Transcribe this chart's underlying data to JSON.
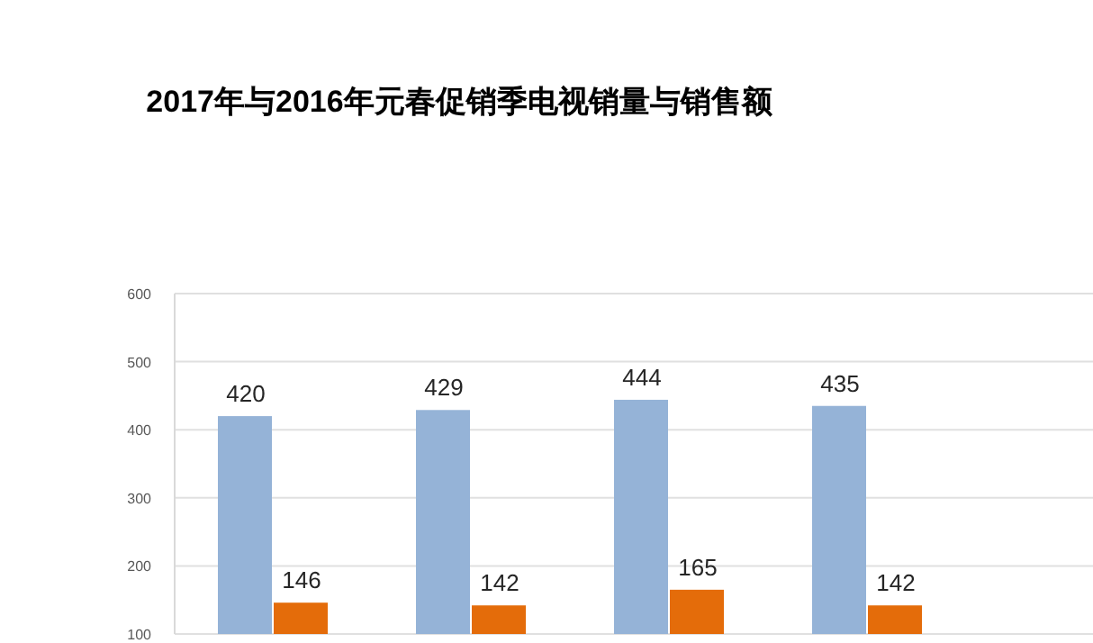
{
  "chart_data": {
    "type": "bar",
    "title": "2017年与2016年元春促销季电视销量与销售额",
    "categories": [
      null,
      null,
      null,
      null
    ],
    "series": [
      {
        "color": "#95b3d7",
        "values": [
          420,
          429,
          444,
          435
        ]
      },
      {
        "color": "#e46c0a",
        "values": [
          146,
          142,
          165,
          142
        ]
      }
    ],
    "ylim": [
      100,
      600
    ],
    "yticks": [
      100,
      200,
      300,
      400,
      500,
      600
    ],
    "grid": "y",
    "data_labels": true
  }
}
